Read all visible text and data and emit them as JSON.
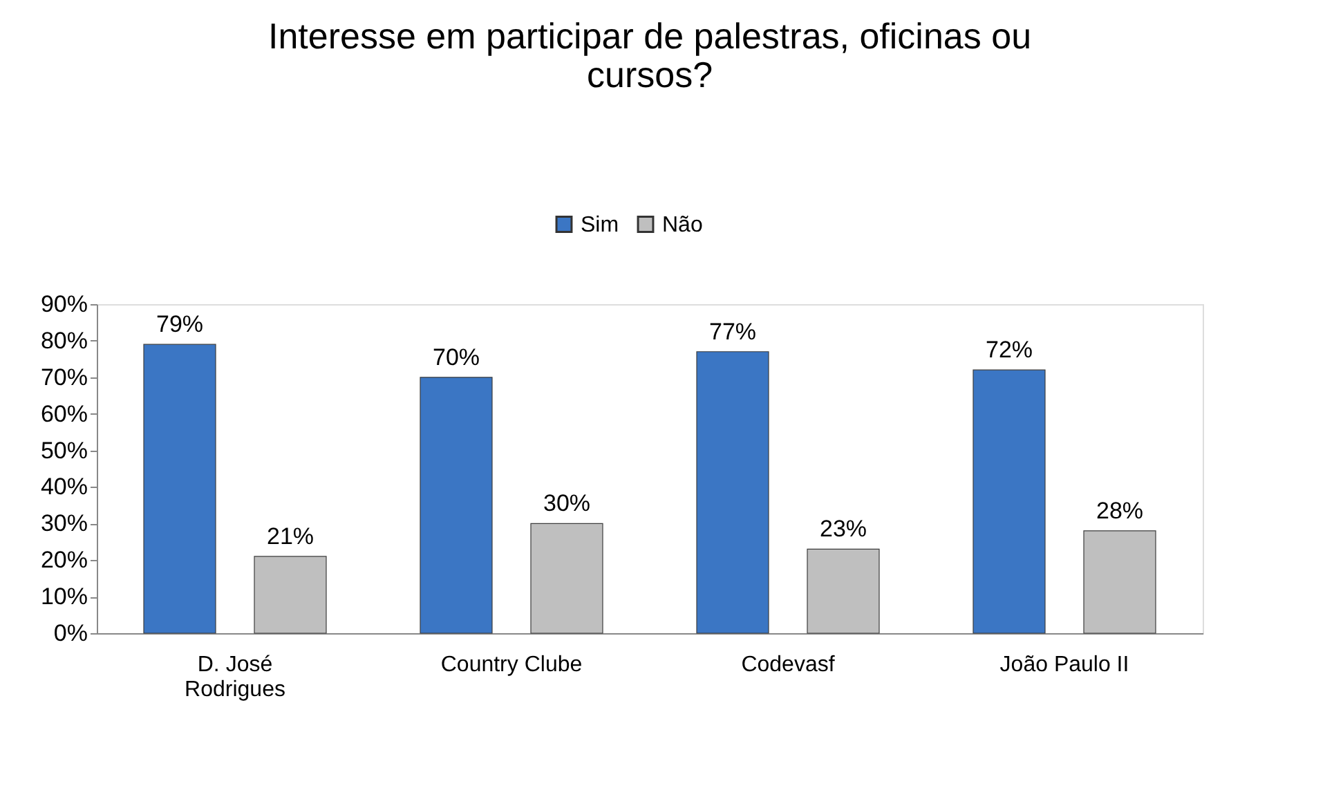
{
  "chart_data": {
    "type": "bar",
    "title": "Interesse em participar de palestras, oficinas ou cursos?",
    "categories": [
      "D. José Rodrigues",
      "Country Clube",
      "Codevasf",
      "João Paulo II"
    ],
    "series": [
      {
        "name": "Sim",
        "color": "#3b76c4",
        "values": [
          79,
          70,
          77,
          72
        ],
        "value_labels": [
          "79%",
          "70%",
          "77%",
          "72%"
        ]
      },
      {
        "name": "Não",
        "color": "#bfbfbf",
        "values": [
          21,
          30,
          23,
          28
        ],
        "value_labels": [
          "21%",
          "30%",
          "23%",
          "28%"
        ]
      }
    ],
    "ylim": [
      0,
      90
    ],
    "yticks": [
      {
        "value": 0,
        "label": "0%"
      },
      {
        "value": 10,
        "label": "10%"
      },
      {
        "value": 20,
        "label": "20%"
      },
      {
        "value": 30,
        "label": "30%"
      },
      {
        "value": 40,
        "label": "40%"
      },
      {
        "value": 50,
        "label": "50%"
      },
      {
        "value": 60,
        "label": "60%"
      },
      {
        "value": 70,
        "label": "70%"
      },
      {
        "value": 80,
        "label": "80%"
      },
      {
        "value": 90,
        "label": "90%"
      }
    ],
    "legend": "top",
    "grid": false
  }
}
